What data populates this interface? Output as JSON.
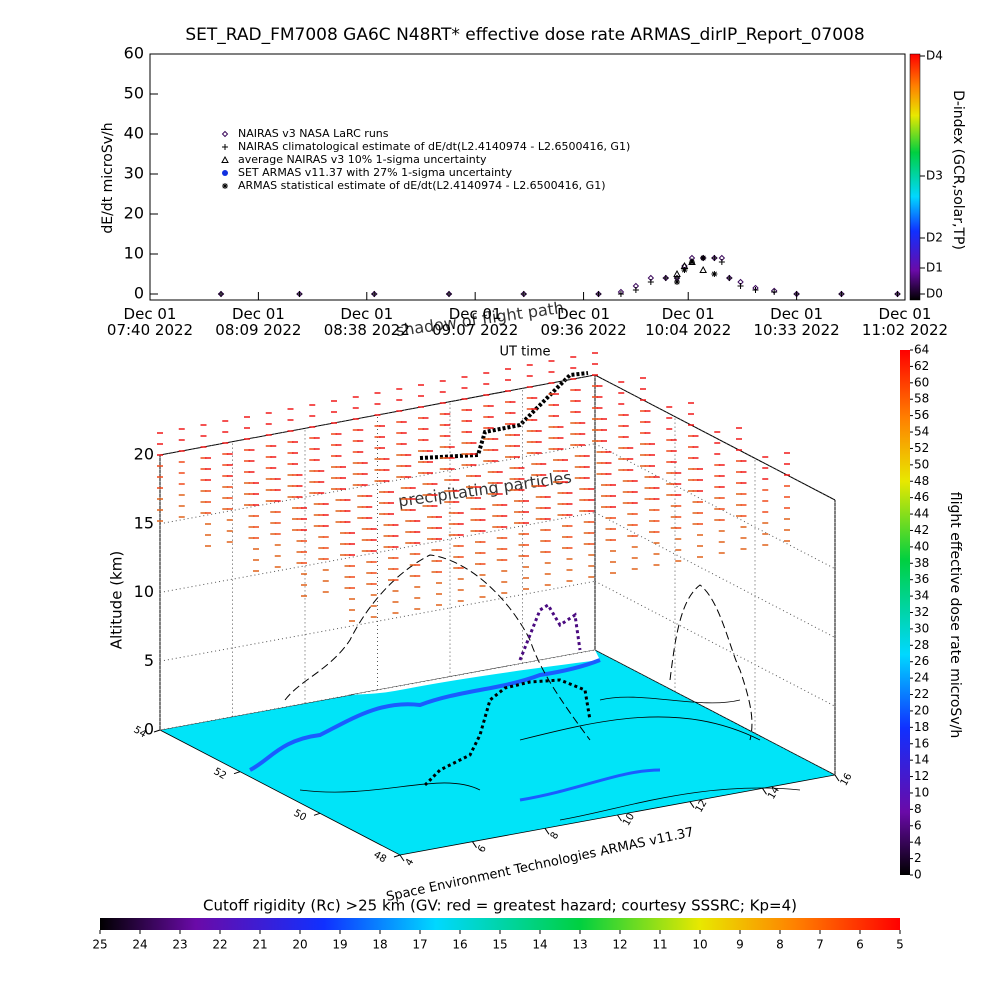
{
  "chart_data": [
    {
      "type": "line",
      "title": "SET_RAD_FM7008  GA6C N48RT* effective dose rate ARMAS_dirIP_Report_07008",
      "y_label": "dE/dt microSv/h",
      "x_label": "UT time",
      "xlim": [
        "07:40",
        "11:02"
      ],
      "xticks": [
        {
          "value": "07:40",
          "label": "Dec 01\n07:40 2022"
        },
        {
          "value": "08:09",
          "label": "Dec 01\n08:09 2022"
        },
        {
          "value": "08:38",
          "label": "Dec 01\n08:38 2022"
        },
        {
          "value": "09:07",
          "label": "Dec 01\n09:07 2022"
        },
        {
          "value": "09:36",
          "label": "Dec 01\n09:36 2022"
        },
        {
          "value": "10:04",
          "label": "Dec 01\n10:04 2022"
        },
        {
          "value": "10:33",
          "label": "Dec 01\n10:33 2022"
        },
        {
          "value": "11:02",
          "label": "Dec 01\n11:02 2022"
        }
      ],
      "ylim": [
        -1.5,
        60
      ],
      "yticks": [
        0,
        10,
        20,
        30,
        40,
        50,
        60
      ],
      "x": [
        "07:59",
        "08:20",
        "08:40",
        "09:00",
        "09:20",
        "09:40",
        "09:46",
        "09:50",
        "09:54",
        "09:58",
        "10:01",
        "10:03",
        "10:05",
        "10:08",
        "10:11",
        "10:13",
        "10:15",
        "10:18",
        "10:22",
        "10:27",
        "10:33",
        "10:45",
        "11:00"
      ],
      "series": [
        {
          "name": "NAIRAS v3 NASA LaRC runs",
          "marker": "diamond",
          "color": "#3c0a5c",
          "values": [
            0,
            0,
            0,
            0,
            0,
            0,
            0.5,
            2,
            4,
            4,
            4,
            7,
            9,
            9,
            9,
            9,
            4,
            3,
            1.5,
            0.8,
            0,
            0,
            0
          ]
        },
        {
          "name": "NAIRAS climatological estimate of dE/dt(L2.4140974 - L2.6500416, G1)",
          "marker": "plus",
          "color": "#000000",
          "values": [
            0,
            0,
            0,
            0,
            0,
            0,
            0,
            1,
            3,
            4,
            4,
            6,
            8,
            9,
            9,
            8,
            4,
            2,
            1,
            0.5,
            0,
            0,
            0
          ]
        },
        {
          "name": "average NAIRAS v3 10% 1-sigma uncertainty",
          "marker": "triangle",
          "color": "#000000",
          "values": [
            null,
            null,
            null,
            null,
            null,
            null,
            null,
            null,
            null,
            null,
            5,
            7,
            8,
            6,
            null,
            null,
            null,
            null,
            null,
            null,
            null,
            null,
            null
          ]
        },
        {
          "name": "SET ARMAS v11.37 with 27% 1-sigma uncertainty",
          "marker": "circle",
          "color": "#1030e0",
          "values": [
            null,
            null,
            null,
            null,
            null,
            null,
            null,
            null,
            null,
            null,
            null,
            null,
            null,
            null,
            null,
            null,
            null,
            null,
            null,
            null,
            null,
            null,
            null
          ]
        },
        {
          "name": "ARMAS statistical estimate of dE/dt(L2.4140974 - L2.6500416, G1)",
          "marker": "star",
          "color": "#000000",
          "values": [
            null,
            null,
            null,
            null,
            null,
            null,
            null,
            null,
            null,
            null,
            3,
            6,
            8,
            9,
            5,
            null,
            null,
            null,
            null,
            null,
            null,
            null,
            null
          ]
        }
      ]
    },
    {
      "type": "colorbar",
      "label": "D-index (GCR,solar,TP)",
      "lim": [
        -1.5,
        60
      ],
      "ticks": [
        {
          "value": 0,
          "label": "D0"
        },
        {
          "value": 6.5,
          "label": "D1"
        },
        {
          "value": 14,
          "label": "D2"
        },
        {
          "value": 29.5,
          "label": "D3"
        },
        {
          "value": 59.5,
          "label": "D4"
        }
      ]
    },
    {
      "type": "surface3d",
      "z_label": "Altitude (km)",
      "zlim": [
        0,
        20
      ],
      "zticks": [
        0,
        5,
        10,
        15,
        20
      ],
      "xlim": [
        4,
        16
      ],
      "xticks": [
        4,
        6,
        8,
        10,
        12,
        14,
        16
      ],
      "ylim": [
        48,
        54
      ],
      "yticks": [
        48,
        50,
        52,
        54
      ],
      "annotations": [
        "precipitating particles",
        "shadow of flight path"
      ],
      "credit": "Space Environment Technologies ARMAS v11.37"
    },
    {
      "type": "colorbar",
      "label": "flight effective dose rate microSv/h",
      "lim": [
        0,
        64
      ],
      "ticks": [
        0,
        2,
        4,
        6,
        8,
        10,
        12,
        14,
        16,
        18,
        20,
        22,
        24,
        26,
        28,
        30,
        32,
        34,
        36,
        38,
        40,
        42,
        44,
        46,
        48,
        50,
        52,
        54,
        56,
        58,
        60,
        62,
        64
      ]
    },
    {
      "type": "colorbar",
      "label": "Cutoff rigidity (Rc) >25 km (GV: red = greatest hazard; courtesy SSSRC; Kp=4)",
      "lim": [
        25,
        5
      ],
      "ticks": [
        25,
        24,
        23,
        22,
        21,
        20,
        19,
        18,
        17,
        16,
        15,
        14,
        13,
        12,
        11,
        10,
        9,
        8,
        7,
        6,
        5
      ]
    }
  ]
}
